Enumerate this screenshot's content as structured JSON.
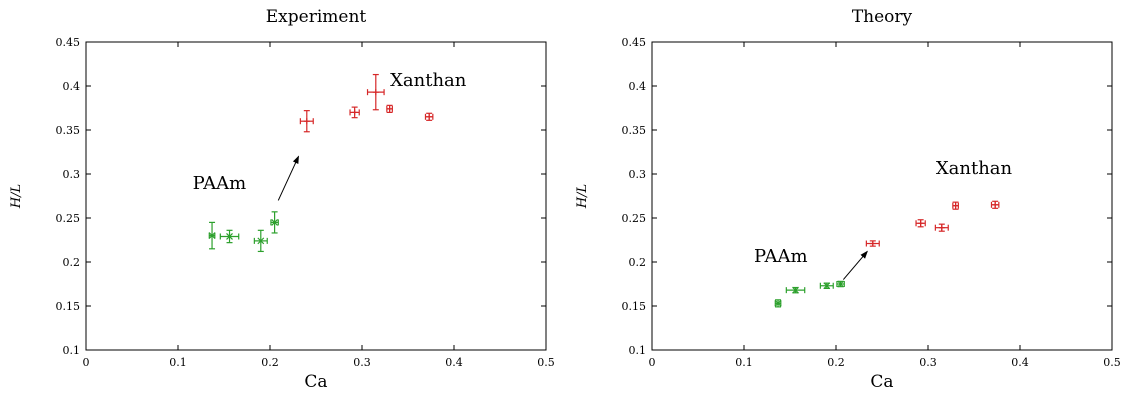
{
  "chart_data": [
    {
      "type": "scatter",
      "title": "Experiment",
      "xlabel": "Ca",
      "ylabel": "H/L",
      "xlim": [
        0,
        0.5
      ],
      "ylim": [
        0.1,
        0.45
      ],
      "xticks": [
        "0",
        "0.1",
        "0.2",
        "0.3",
        "0.4",
        "0.5"
      ],
      "yticks": [
        "0.1",
        "0.15",
        "0.2",
        "0.25",
        "0.3",
        "0.35",
        "0.4",
        "0.45"
      ],
      "grid": false,
      "series": [
        {
          "name": "PAAm",
          "color": "#2ca02c",
          "marker": "x",
          "points": [
            {
              "x": 0.137,
              "y": 0.23,
              "xerr": 0.003,
              "yerr": 0.015
            },
            {
              "x": 0.156,
              "y": 0.229,
              "xerr": 0.01,
              "yerr": 0.007
            },
            {
              "x": 0.19,
              "y": 0.224,
              "xerr": 0.007,
              "yerr": 0.012
            },
            {
              "x": 0.205,
              "y": 0.245,
              "xerr": 0.004,
              "yerr": 0.012
            }
          ]
        },
        {
          "name": "Xanthan",
          "color": "#d62728",
          "marker": "+",
          "points": [
            {
              "x": 0.24,
              "y": 0.36,
              "xerr": 0.007,
              "yerr": 0.012
            },
            {
              "x": 0.292,
              "y": 0.37,
              "xerr": 0.005,
              "yerr": 0.006
            },
            {
              "x": 0.315,
              "y": 0.393,
              "xerr": 0.009,
              "yerr": 0.02
            },
            {
              "x": 0.33,
              "y": 0.374,
              "xerr": 0.003,
              "yerr": 0.004
            },
            {
              "x": 0.373,
              "y": 0.365,
              "xerr": 0.004,
              "yerr": 0.004
            }
          ]
        }
      ],
      "annotations": [
        {
          "text": "PAAm",
          "x": 0.145,
          "y": 0.283
        },
        {
          "text": "Xanthan",
          "x": 0.372,
          "y": 0.4
        }
      ],
      "arrow": {
        "from": [
          0.209,
          0.27
        ],
        "to": [
          0.231,
          0.32
        ]
      }
    },
    {
      "type": "scatter",
      "title": "Theory",
      "xlabel": "Ca",
      "ylabel": "H/L",
      "xlim": [
        0,
        0.5
      ],
      "ylim": [
        0.1,
        0.45
      ],
      "xticks": [
        "0",
        "0.1",
        "0.2",
        "0.3",
        "0.4",
        "0.5"
      ],
      "yticks": [
        "0.1",
        "0.15",
        "0.2",
        "0.25",
        "0.3",
        "0.35",
        "0.4",
        "0.45"
      ],
      "grid": false,
      "series": [
        {
          "name": "PAAm",
          "color": "#2ca02c",
          "marker": "x",
          "points": [
            {
              "x": 0.137,
              "y": 0.153,
              "xerr": 0.003,
              "yerr": 0.004
            },
            {
              "x": 0.156,
              "y": 0.168,
              "xerr": 0.01,
              "yerr": 0.003
            },
            {
              "x": 0.19,
              "y": 0.173,
              "xerr": 0.007,
              "yerr": 0.003
            },
            {
              "x": 0.205,
              "y": 0.175,
              "xerr": 0.004,
              "yerr": 0.003
            }
          ]
        },
        {
          "name": "Xanthan",
          "color": "#d62728",
          "marker": "+",
          "points": [
            {
              "x": 0.24,
              "y": 0.221,
              "xerr": 0.007,
              "yerr": 0.003
            },
            {
              "x": 0.292,
              "y": 0.244,
              "xerr": 0.005,
              "yerr": 0.004
            },
            {
              "x": 0.315,
              "y": 0.239,
              "xerr": 0.007,
              "yerr": 0.004
            },
            {
              "x": 0.33,
              "y": 0.264,
              "xerr": 0.003,
              "yerr": 0.004
            },
            {
              "x": 0.373,
              "y": 0.265,
              "xerr": 0.004,
              "yerr": 0.004
            }
          ]
        }
      ],
      "annotations": [
        {
          "text": "PAAm",
          "x": 0.14,
          "y": 0.2
        },
        {
          "text": "Xanthan",
          "x": 0.35,
          "y": 0.3
        }
      ],
      "arrow": {
        "from": [
          0.208,
          0.18
        ],
        "to": [
          0.234,
          0.212
        ]
      }
    }
  ]
}
